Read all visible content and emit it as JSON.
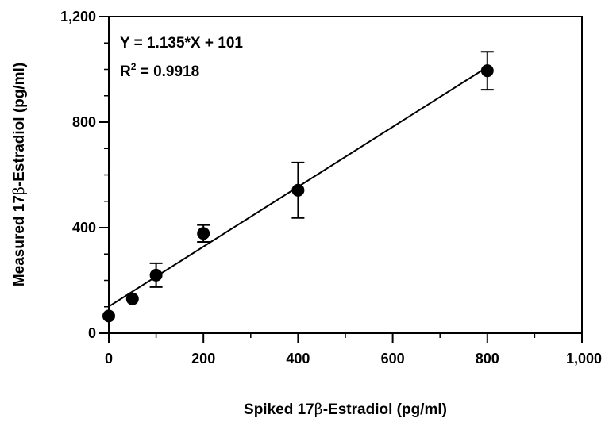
{
  "chart_data": {
    "type": "scatter",
    "xlabel": {
      "before": "Spiked 17",
      "greek": "β",
      "after": "-Estradiol (pg/ml)"
    },
    "ylabel": {
      "before": "Measured 17",
      "greek": "β",
      "after": "-Estradiol (pg/ml)"
    },
    "xlim": [
      0,
      1000
    ],
    "ylim": [
      0,
      1200
    ],
    "x_ticks": [
      0,
      200,
      400,
      600,
      800,
      1000
    ],
    "x_tick_labels": [
      "0",
      "200",
      "400",
      "600",
      "800",
      "1,000"
    ],
    "y_ticks": [
      0,
      400,
      800,
      1200
    ],
    "y_tick_labels": [
      "0",
      "400",
      "800",
      "1,200"
    ],
    "x_minor_step": 100,
    "y_minor_step": 100,
    "grid": false,
    "legend": null,
    "series": [
      {
        "points": [
          {
            "x": 0,
            "y": 65,
            "err": 0
          },
          {
            "x": 50,
            "y": 130,
            "err": 0
          },
          {
            "x": 100,
            "y": 220,
            "err": 45
          },
          {
            "x": 200,
            "y": 378,
            "err": 32
          },
          {
            "x": 400,
            "y": 542,
            "err": 105
          },
          {
            "x": 800,
            "y": 995,
            "err": 72
          }
        ]
      }
    ],
    "fit_line": {
      "slope": 1.135,
      "intercept": 101,
      "x_range": [
        0,
        800
      ]
    },
    "annotations": {
      "equation": "Y = 1.135*X + 101",
      "r2_prefix": "R",
      "r2_sup": "2",
      "r2_value": " = 0.9918"
    },
    "colors": {
      "ink": "#000000",
      "background": "#ffffff"
    }
  }
}
